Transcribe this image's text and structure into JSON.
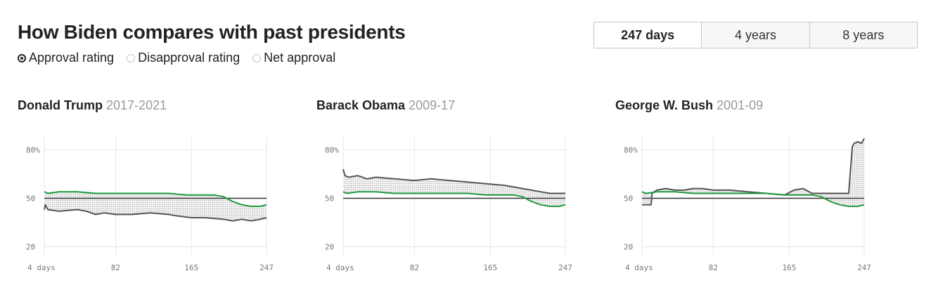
{
  "header": {
    "title": "How Biden compares with past presidents",
    "metrics": [
      {
        "label": "Approval rating",
        "selected": true
      },
      {
        "label": "Disapproval rating",
        "selected": false
      },
      {
        "label": "Net approval",
        "selected": false
      }
    ],
    "ranges": [
      {
        "label": "247 days",
        "selected": true
      },
      {
        "label": "4 years",
        "selected": false
      },
      {
        "label": "8 years",
        "selected": false
      }
    ]
  },
  "colors": {
    "biden_line": "#1e9a3c",
    "president_line": "#555555",
    "fill_hatch": "#d9d9d9",
    "baseline": "#333333",
    "grid": "#e6e6e6"
  },
  "chart_data": [
    {
      "type": "line",
      "president": "Donald Trump",
      "years": "2017-2021",
      "x_label": "days",
      "xlim": [
        4,
        247
      ],
      "ylim": [
        15,
        88
      ],
      "x_ticks": [
        4,
        82,
        165,
        247
      ],
      "x_tick_labels": [
        "4 days",
        "82",
        "165",
        "247"
      ],
      "y_ticks": [
        80,
        50,
        20
      ],
      "y_tick_labels": [
        "80%",
        "50",
        "20"
      ],
      "baseline": 50,
      "series": [
        {
          "role": "president",
          "x": [
            4,
            5,
            8,
            20,
            40,
            50,
            60,
            70,
            82,
            100,
            120,
            140,
            150,
            165,
            180,
            200,
            210,
            220,
            230,
            240,
            247
          ],
          "y": [
            43,
            46,
            43,
            42,
            43,
            42,
            40,
            41,
            40,
            40,
            41,
            40,
            39,
            38,
            38,
            37,
            36,
            37,
            36,
            37,
            38
          ]
        },
        {
          "role": "biden",
          "x": [
            4,
            8,
            20,
            40,
            60,
            80,
            100,
            120,
            140,
            160,
            180,
            190,
            200,
            210,
            220,
            230,
            240,
            247
          ],
          "y": [
            54,
            53,
            54,
            54,
            53,
            53,
            53,
            53,
            53,
            52,
            52,
            52,
            51,
            48,
            46,
            45,
            45,
            46
          ]
        }
      ]
    },
    {
      "type": "line",
      "president": "Barack Obama",
      "years": "2009-17",
      "x_label": "days",
      "xlim": [
        4,
        247
      ],
      "ylim": [
        15,
        88
      ],
      "x_ticks": [
        4,
        82,
        165,
        247
      ],
      "x_tick_labels": [
        "4 days",
        "82",
        "165",
        "247"
      ],
      "y_ticks": [
        80,
        50,
        20
      ],
      "y_tick_labels": [
        "80%",
        "50",
        "20"
      ],
      "baseline": 50,
      "series": [
        {
          "role": "president",
          "x": [
            4,
            6,
            10,
            20,
            30,
            40,
            60,
            82,
            100,
            120,
            140,
            160,
            180,
            200,
            210,
            220,
            230,
            240,
            247
          ],
          "y": [
            68,
            64,
            63,
            64,
            62,
            63,
            62,
            61,
            62,
            61,
            60,
            59,
            58,
            56,
            55,
            54,
            53,
            53,
            53
          ]
        },
        {
          "role": "biden",
          "x": [
            4,
            8,
            20,
            40,
            60,
            80,
            100,
            120,
            140,
            160,
            180,
            190,
            200,
            210,
            220,
            230,
            240,
            247
          ],
          "y": [
            54,
            53,
            54,
            54,
            53,
            53,
            53,
            53,
            53,
            52,
            52,
            52,
            51,
            48,
            46,
            45,
            45,
            46
          ]
        }
      ]
    },
    {
      "type": "line",
      "president": "George W. Bush",
      "years": "2001-09",
      "x_label": "days",
      "xlim": [
        4,
        247
      ],
      "ylim": [
        15,
        88
      ],
      "x_ticks": [
        4,
        82,
        165,
        247
      ],
      "x_tick_labels": [
        "4 days",
        "82",
        "165",
        "247"
      ],
      "y_ticks": [
        80,
        50,
        20
      ],
      "y_tick_labels": [
        "80%",
        "50",
        "20"
      ],
      "baseline": 50,
      "series": [
        {
          "role": "president",
          "x": [
            4,
            10,
            14,
            15,
            20,
            30,
            40,
            50,
            60,
            70,
            82,
            100,
            120,
            140,
            160,
            170,
            180,
            190,
            200,
            230,
            234,
            236,
            240,
            244,
            247
          ],
          "y": [
            46,
            46,
            46,
            53,
            55,
            56,
            55,
            55,
            56,
            56,
            55,
            55,
            54,
            53,
            52,
            55,
            56,
            53,
            53,
            53,
            82,
            84,
            85,
            84,
            87
          ]
        },
        {
          "role": "biden",
          "x": [
            4,
            8,
            20,
            40,
            60,
            80,
            100,
            120,
            140,
            160,
            180,
            190,
            200,
            210,
            220,
            230,
            240,
            247
          ],
          "y": [
            54,
            53,
            54,
            54,
            53,
            53,
            53,
            53,
            53,
            52,
            52,
            52,
            51,
            48,
            46,
            45,
            45,
            46
          ]
        }
      ]
    }
  ]
}
